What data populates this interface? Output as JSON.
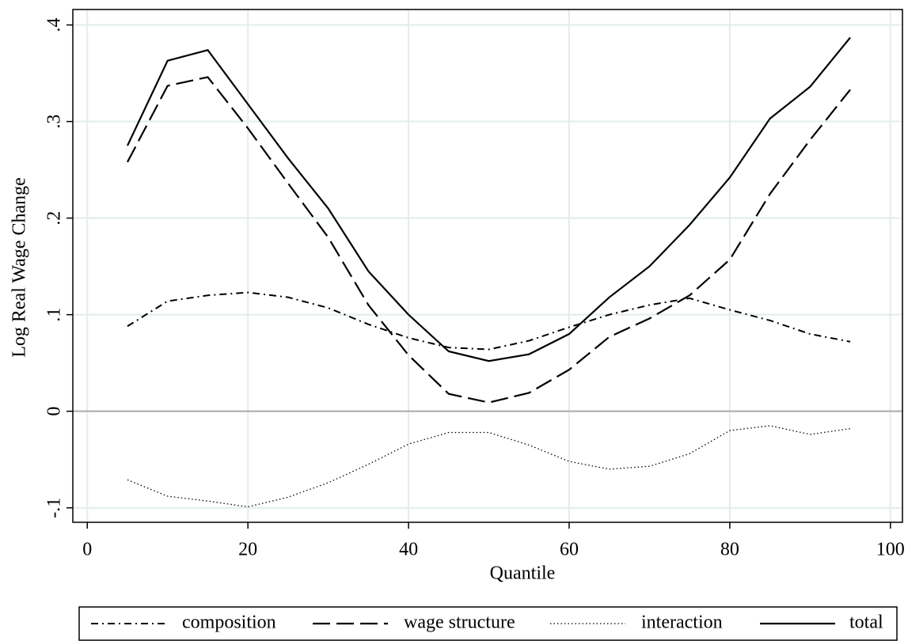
{
  "chart_data": {
    "type": "line",
    "xlabel": "Quantile",
    "ylabel": "Log Real Wage Change",
    "x": [
      5,
      10,
      15,
      20,
      25,
      30,
      35,
      40,
      45,
      50,
      55,
      60,
      65,
      70,
      75,
      80,
      85,
      90,
      95
    ],
    "series": [
      {
        "name": "composition",
        "color": "#000000",
        "dash": "dash-dot",
        "values": [
          0.088,
          0.114,
          0.12,
          0.123,
          0.118,
          0.107,
          0.09,
          0.076,
          0.066,
          0.064,
          0.073,
          0.087,
          0.1,
          0.11,
          0.117,
          0.105,
          0.094,
          0.08,
          0.072
        ]
      },
      {
        "name": "wage structure",
        "color": "#000000",
        "dash": "long-dash",
        "values": [
          0.258,
          0.337,
          0.346,
          0.293,
          0.236,
          0.18,
          0.11,
          0.058,
          0.018,
          0.009,
          0.019,
          0.043,
          0.077,
          0.096,
          0.12,
          0.157,
          0.225,
          0.281,
          0.333
        ]
      },
      {
        "name": "interaction",
        "color": "#000000",
        "dash": "dot",
        "values": [
          -0.071,
          -0.088,
          -0.093,
          -0.099,
          -0.089,
          -0.074,
          -0.055,
          -0.034,
          -0.022,
          -0.022,
          -0.035,
          -0.052,
          -0.06,
          -0.057,
          -0.044,
          -0.02,
          -0.015,
          -0.024,
          -0.018
        ]
      },
      {
        "name": "total",
        "color": "#000000",
        "dash": "solid",
        "values": [
          0.275,
          0.363,
          0.374,
          0.318,
          0.262,
          0.21,
          0.145,
          0.1,
          0.062,
          0.052,
          0.059,
          0.08,
          0.118,
          0.15,
          0.193,
          0.242,
          0.303,
          0.336,
          0.387
        ]
      }
    ],
    "xlim": [
      -1.8,
      101.5
    ],
    "xticks": [
      0,
      20,
      40,
      60,
      80,
      100
    ],
    "ylim": [
      -0.115,
      0.416
    ],
    "yticks": [
      {
        "value": -0.1,
        "label": "-.1"
      },
      0,
      {
        "value": 0.1,
        "label": ".1"
      },
      {
        "value": 0.2,
        "label": ".2"
      },
      {
        "value": 0.3,
        "label": ".3"
      },
      {
        "value": 0.4,
        "label": ".4"
      }
    ],
    "grid": true,
    "zero_line": true,
    "legend": "bottom"
  }
}
